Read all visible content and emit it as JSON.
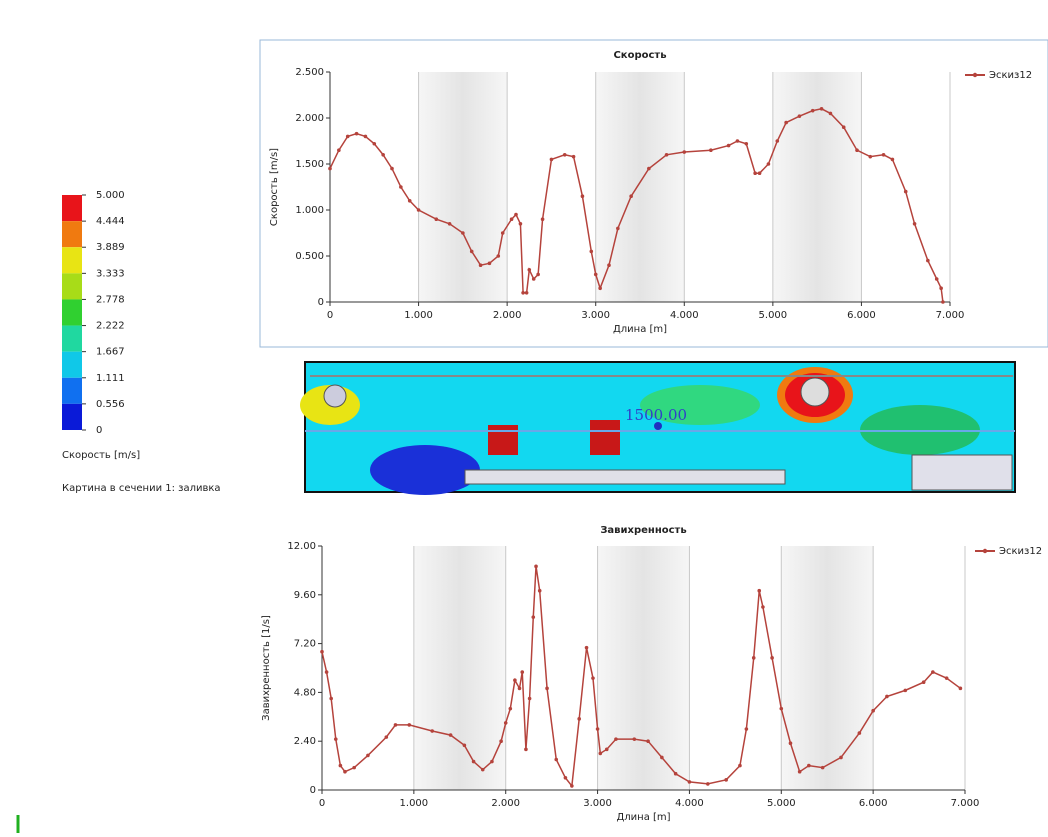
{
  "chart_data": [
    {
      "type": "line",
      "title": "Скорость",
      "x_label": "Длина [m]",
      "y_label": "Скорость [m/s]",
      "xlim": [
        0,
        7
      ],
      "ylim": [
        0,
        2.5
      ],
      "xticks": [
        0,
        {
          "value": 1,
          "label": "1.000"
        },
        {
          "value": 2,
          "label": "2.000"
        },
        {
          "value": 3,
          "label": "3.000"
        },
        {
          "value": 4,
          "label": "4.000"
        },
        {
          "value": 5,
          "label": "5.000"
        },
        {
          "value": 6,
          "label": "6.000"
        },
        {
          "value": 7,
          "label": "7.000"
        }
      ],
      "yticks": [
        0,
        {
          "value": 0.5,
          "label": "0.500"
        },
        {
          "value": 1,
          "label": "1.000"
        },
        {
          "value": 1.5,
          "label": "1.500"
        },
        {
          "value": 2,
          "label": "2.000"
        },
        {
          "value": 2.5,
          "label": "2.500"
        }
      ],
      "xgrid": true,
      "legend": "right",
      "x": [
        0,
        0.1,
        0.2,
        0.3,
        0.4,
        0.5,
        0.6,
        0.7,
        0.8,
        0.9,
        1.0,
        1.2,
        1.35,
        1.5,
        1.6,
        1.7,
        1.8,
        1.9,
        1.95,
        2.05,
        2.1,
        2.15,
        2.18,
        2.22,
        2.25,
        2.3,
        2.35,
        2.4,
        2.5,
        2.65,
        2.75,
        2.85,
        2.95,
        3.0,
        3.05,
        3.15,
        3.25,
        3.4,
        3.6,
        3.8,
        4.0,
        4.3,
        4.5,
        4.6,
        4.7,
        4.8,
        4.85,
        4.95,
        5.05,
        5.15,
        5.3,
        5.45,
        5.55,
        5.65,
        5.8,
        5.95,
        6.1,
        6.25,
        6.35,
        6.5,
        6.6,
        6.75,
        6.85,
        6.9,
        6.92
      ],
      "series": [
        {
          "name": "Эскиз12",
          "color": "#b5433c",
          "values": [
            1.45,
            1.65,
            1.8,
            1.83,
            1.8,
            1.72,
            1.6,
            1.45,
            1.25,
            1.1,
            1.0,
            0.9,
            0.85,
            0.75,
            0.55,
            0.4,
            0.42,
            0.5,
            0.75,
            0.9,
            0.95,
            0.85,
            0.1,
            0.1,
            0.35,
            0.25,
            0.3,
            0.9,
            1.55,
            1.6,
            1.58,
            1.15,
            0.55,
            0.3,
            0.15,
            0.4,
            0.8,
            1.15,
            1.45,
            1.6,
            1.63,
            1.65,
            1.7,
            1.75,
            1.72,
            1.4,
            1.4,
            1.5,
            1.75,
            1.95,
            2.02,
            2.08,
            2.1,
            2.05,
            1.9,
            1.65,
            1.58,
            1.6,
            1.55,
            1.2,
            0.85,
            0.45,
            0.25,
            0.15,
            0
          ]
        }
      ]
    },
    {
      "type": "line",
      "title": "Завихренность",
      "x_label": "Длина [m]",
      "y_label": "Завихренность [1/s]",
      "xlim": [
        0,
        7
      ],
      "ylim": [
        0,
        12
      ],
      "xticks": [
        0,
        {
          "value": 1,
          "label": "1.000"
        },
        {
          "value": 2,
          "label": "2.000"
        },
        {
          "value": 3,
          "label": "3.000"
        },
        {
          "value": 4,
          "label": "4.000"
        },
        {
          "value": 5,
          "label": "5.000"
        },
        {
          "value": 6,
          "label": "6.000"
        },
        {
          "value": 7,
          "label": "7.000"
        }
      ],
      "yticks": [
        0,
        {
          "value": 2.4,
          "label": "2.40"
        },
        {
          "value": 4.8,
          "label": "4.80"
        },
        {
          "value": 7.2,
          "label": "7.20"
        },
        {
          "value": 9.6,
          "label": "9.60"
        },
        {
          "value": 12,
          "label": "12.00"
        }
      ],
      "xgrid": true,
      "legend": "right",
      "x": [
        0,
        0.05,
        0.1,
        0.15,
        0.2,
        0.25,
        0.35,
        0.5,
        0.7,
        0.8,
        0.95,
        1.2,
        1.4,
        1.55,
        1.65,
        1.75,
        1.85,
        1.95,
        2.0,
        2.05,
        2.1,
        2.15,
        2.18,
        2.22,
        2.26,
        2.3,
        2.33,
        2.37,
        2.45,
        2.55,
        2.65,
        2.72,
        2.8,
        2.88,
        2.95,
        3.0,
        3.03,
        3.1,
        3.2,
        3.4,
        3.55,
        3.7,
        3.85,
        4.0,
        4.2,
        4.4,
        4.55,
        4.62,
        4.7,
        4.76,
        4.8,
        4.9,
        5.0,
        5.1,
        5.2,
        5.3,
        5.45,
        5.65,
        5.85,
        6.0,
        6.15,
        6.35,
        6.55,
        6.65,
        6.8,
        6.95
      ],
      "series": [
        {
          "name": "Эскиз12",
          "color": "#b5433c",
          "values": [
            6.8,
            5.8,
            4.5,
            2.5,
            1.2,
            0.9,
            1.1,
            1.7,
            2.6,
            3.2,
            3.2,
            2.9,
            2.7,
            2.2,
            1.4,
            1.0,
            1.4,
            2.4,
            3.3,
            4.0,
            5.4,
            5.0,
            5.8,
            2.0,
            4.5,
            8.5,
            11.0,
            9.8,
            5.0,
            1.5,
            0.6,
            0.2,
            3.5,
            7.0,
            5.5,
            3.0,
            1.8,
            2.0,
            2.5,
            2.5,
            2.4,
            1.6,
            0.8,
            0.4,
            0.3,
            0.5,
            1.2,
            3.0,
            6.5,
            9.8,
            9.0,
            6.5,
            4.0,
            2.3,
            0.9,
            1.2,
            1.1,
            1.6,
            2.8,
            3.9,
            4.6,
            4.9,
            5.3,
            5.8,
            5.5,
            5.0
          ]
        }
      ]
    }
  ],
  "colorbar": {
    "ticks": [
      {
        "value": 5,
        "label": "5.000"
      },
      {
        "value": 4.444,
        "label": "4.444"
      },
      {
        "value": 3.889,
        "label": "3.889"
      },
      {
        "value": 3.333,
        "label": "3.333"
      },
      {
        "value": 2.778,
        "label": "2.778"
      },
      {
        "value": 2.222,
        "label": "2.222"
      },
      {
        "value": 1.667,
        "label": "1.667"
      },
      {
        "value": 1.111,
        "label": "1.111"
      },
      {
        "value": 0.556,
        "label": "0.556"
      },
      0
    ],
    "colors": [
      "#e8141a",
      "#f07a10",
      "#e8e414",
      "#a8dc18",
      "#30d030",
      "#20d8a0",
      "#10c8e8",
      "#1070f0",
      "#0a1ad8"
    ],
    "label": "Скорость [m/s]",
    "caption": "Картина в сечении 1: заливка"
  },
  "section_view": {
    "label": "1500.00"
  }
}
